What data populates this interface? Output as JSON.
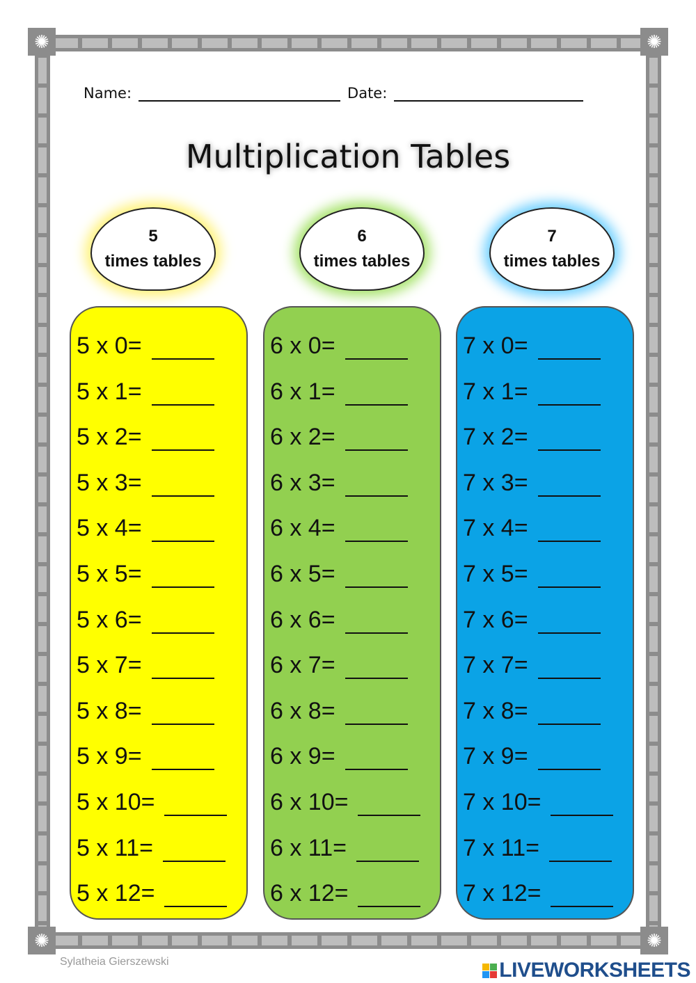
{
  "header": {
    "name_label": "Name:",
    "date_label": "Date:"
  },
  "title": "Multiplication Tables",
  "colors": {
    "five": "#ffff00",
    "six": "#92d050",
    "seven": "#0ba3e6",
    "frame": "#8c8c8c"
  },
  "tables": [
    {
      "number": "5",
      "subtitle": "times tables",
      "rows": [
        "5 x 0=",
        "5 x 1=",
        "5 x 2=",
        "5 x 3=",
        "5 x 4=",
        "5 x 5=",
        "5 x 6=",
        "5 x 7=",
        "5 x 8=",
        "5 x 9=",
        "5 x 10=",
        "5 x 11=",
        "5 x 12="
      ]
    },
    {
      "number": "6",
      "subtitle": "times tables",
      "rows": [
        "6 x 0=",
        "6 x 1=",
        "6 x 2=",
        "6 x 3=",
        "6 x 4=",
        "6 x 5=",
        "6 x 6=",
        "6 x 7=",
        "6 x 8=",
        "6 x 9=",
        "6 x 10=",
        "6 x 11=",
        "6 x 12="
      ]
    },
    {
      "number": "7",
      "subtitle": "times tables",
      "rows": [
        "7 x 0=",
        "7 x 1=",
        "7 x 2=",
        "7 x 3=",
        "7 x 4=",
        "7 x 5=",
        "7 x 6=",
        "7 x 7=",
        "7 x 8=",
        "7 x 9=",
        "7 x 10=",
        "7 x 11=",
        "7 x 12="
      ]
    }
  ],
  "footer": {
    "author": "Sylatheia Gierszewski",
    "brand": "LIVEWORKSHEETS"
  }
}
